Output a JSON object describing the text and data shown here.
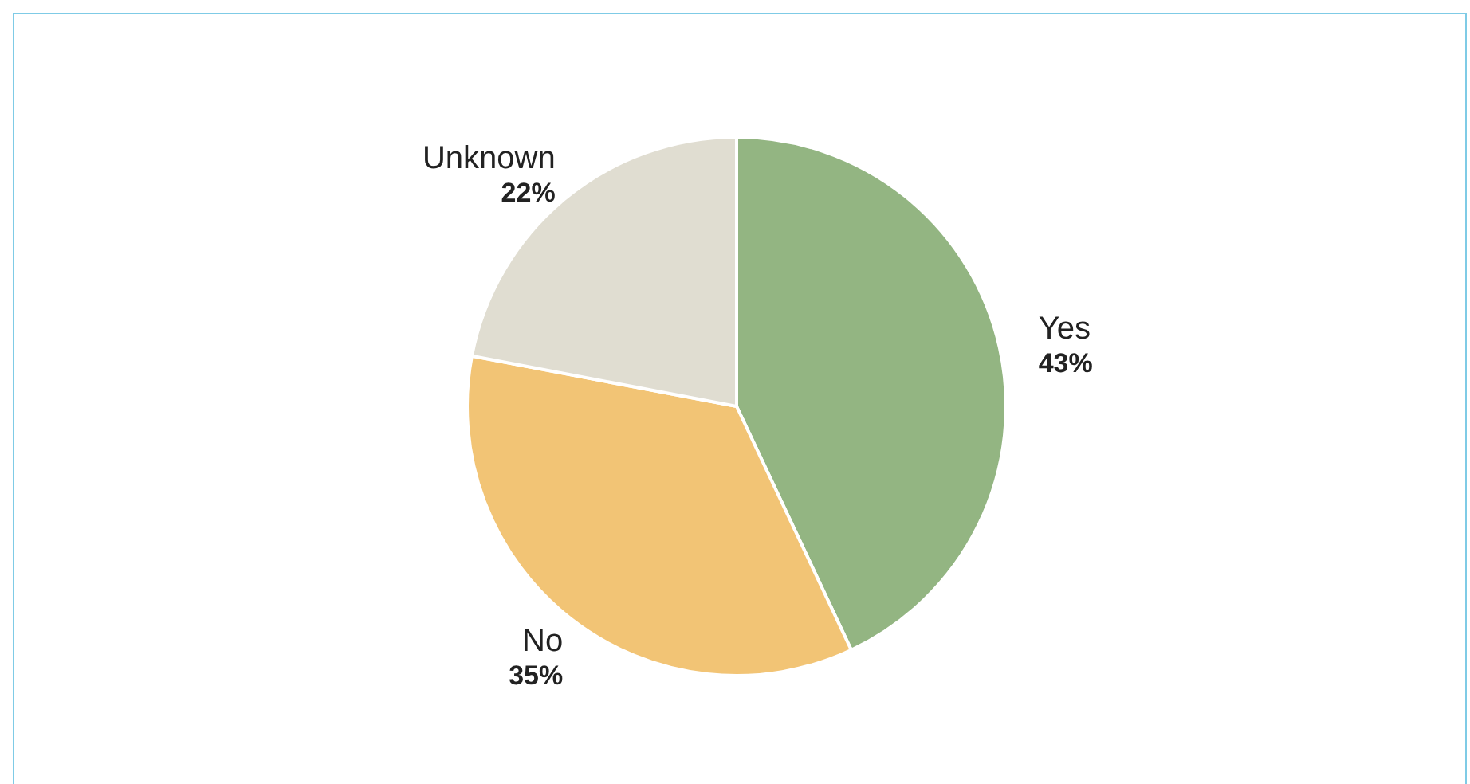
{
  "chart_data": {
    "type": "pie",
    "categories": [
      "Yes",
      "No",
      "Unknown"
    ],
    "values": [
      43,
      35,
      22
    ],
    "value_labels": [
      "43%",
      "35%",
      "22%"
    ],
    "colors": [
      "#93b582",
      "#f2c475",
      "#e0ddd1"
    ],
    "legend": false
  }
}
